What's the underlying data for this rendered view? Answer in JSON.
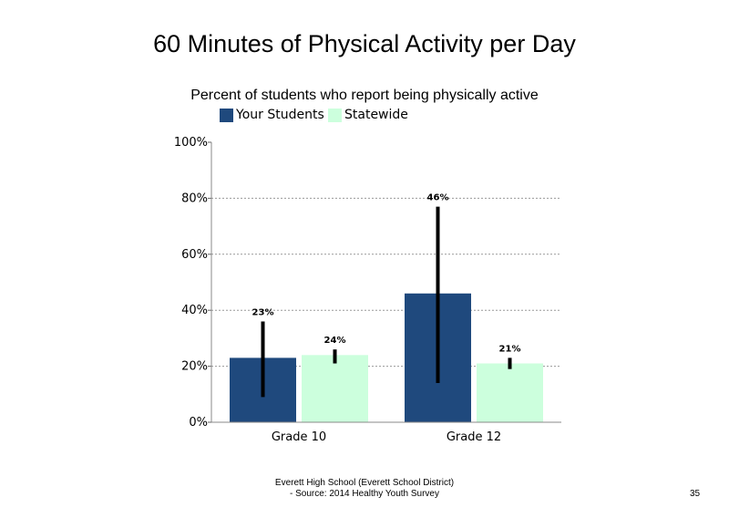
{
  "chart_data": {
    "type": "bar",
    "title": "60 Minutes of Physical Activity per Day",
    "subtitle": "Percent of students  who report being physically active",
    "categories": [
      "Grade 10",
      "Grade 12"
    ],
    "series": [
      {
        "name": "Your Students",
        "color": "#1f497d",
        "values": [
          23,
          46
        ],
        "ci_low": [
          9,
          14
        ],
        "ci_high": [
          36,
          77
        ],
        "labels": [
          "23%",
          "46%"
        ]
      },
      {
        "name": "Statewide",
        "color": "#ccffdd",
        "values": [
          24,
          21
        ],
        "ci_low": [
          21,
          19
        ],
        "ci_high": [
          26,
          23
        ],
        "labels": [
          "24%",
          "21%"
        ]
      }
    ],
    "ylim": [
      0,
      100
    ],
    "yticks": [
      0,
      20,
      40,
      60,
      80,
      100
    ],
    "ytick_labels": [
      "0%",
      "20%",
      "40%",
      "60%",
      "80%",
      "100%"
    ],
    "grid": true,
    "legend_position": "top-left"
  },
  "footer": {
    "line1": "Everett High  School (Everett School District)",
    "line2": "- Source: 2014 Healthy  Youth Survey"
  },
  "page_number": "35"
}
